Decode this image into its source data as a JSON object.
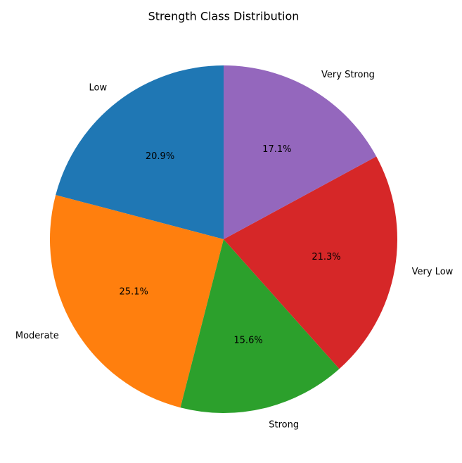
{
  "chart_data": {
    "type": "pie",
    "title": "Strength Class Distribution",
    "start_angle_deg": 90,
    "direction": "counterclockwise",
    "slices": [
      {
        "label": "Low",
        "percent": 20.9,
        "percent_label": "20.9%",
        "color": "#1f77b4"
      },
      {
        "label": "Moderate",
        "percent": 25.1,
        "percent_label": "25.1%",
        "color": "#ff7f0e"
      },
      {
        "label": "Strong",
        "percent": 15.6,
        "percent_label": "15.6%",
        "color": "#2ca02c"
      },
      {
        "label": "Very Low",
        "percent": 21.3,
        "percent_label": "21.3%",
        "color": "#d62728"
      },
      {
        "label": "Very Strong",
        "percent": 17.1,
        "percent_label": "17.1%",
        "color": "#9467bd"
      }
    ]
  }
}
